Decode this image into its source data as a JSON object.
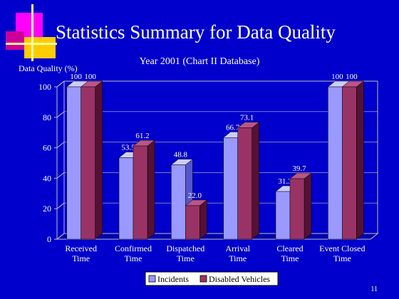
{
  "slide": {
    "title": "Statistics Summary for Data Quality",
    "page_number": "11"
  },
  "chart_data": {
    "type": "bar",
    "title": "Year 2001 (Chart II Database)",
    "ylabel": "Data Quality (%)",
    "xlabel": "",
    "ylim": [
      0,
      100
    ],
    "yticks": [
      0,
      20,
      40,
      60,
      80,
      100
    ],
    "categories": [
      [
        "Received",
        "Time"
      ],
      [
        "Confirmed",
        "Time"
      ],
      [
        "Dispatched",
        "Time"
      ],
      [
        "Arrival",
        "Time"
      ],
      [
        "Cleared",
        "Time"
      ],
      [
        "Event Closed",
        "Time"
      ]
    ],
    "series": [
      {
        "name": "Incidents",
        "values": [
          100,
          53.5,
          48.8,
          66.7,
          31.3,
          100
        ],
        "labels": [
          "100",
          "53.5",
          "48.8",
          "66.7",
          "31.3",
          "100"
        ],
        "color": "#9999ff"
      },
      {
        "name": "Disabled Vehicles",
        "values": [
          100,
          61.2,
          22.0,
          73.1,
          39.7,
          100
        ],
        "labels": [
          "100",
          "61.2",
          "22.0",
          "73.1",
          "39.7",
          "100"
        ],
        "color": "#993366"
      }
    ],
    "grid": true,
    "legend_position": "bottom"
  },
  "colors": {
    "background": "#0000cc",
    "text": "#ffffff",
    "axis": "#c0c0c0"
  }
}
